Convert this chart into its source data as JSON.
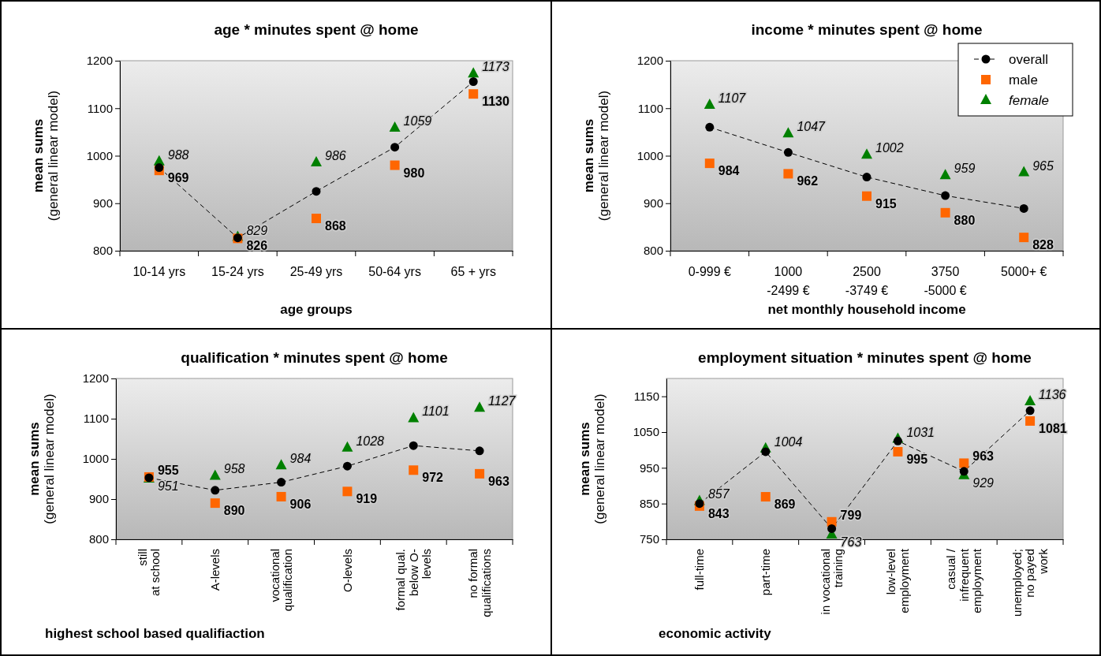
{
  "chart_data": [
    {
      "type": "line",
      "title": "age * minutes spent @ home",
      "xlabel": "age groups",
      "ylabel": "mean sums",
      "subtitle": "(general linear model)",
      "categories": [
        "10-14 yrs",
        "15-24 yrs",
        "25-49 yrs",
        "50-64 yrs",
        "65 + yrs"
      ],
      "ylim": [
        800,
        1200
      ],
      "yticks": [
        800,
        900,
        1000,
        1100,
        1200
      ],
      "grid": false,
      "legend": false,
      "series": [
        {
          "type": "line",
          "marker": "circle",
          "line_style": "dashed",
          "color": "#000000",
          "values": [
            975,
            827,
            925,
            1018,
            1156
          ]
        },
        {
          "type": "scatter",
          "marker": "square",
          "color": "#ff6600",
          "values": [
            969,
            826,
            868,
            980,
            1130
          ],
          "value_labels": [
            "969",
            "826",
            "868",
            "980",
            "1130"
          ]
        },
        {
          "type": "scatter",
          "marker": "triangle",
          "color": "#008000",
          "values": [
            988,
            829,
            986,
            1059,
            1173
          ],
          "value_labels": [
            "988",
            "829",
            "986",
            "1059",
            "1173"
          ]
        }
      ]
    },
    {
      "type": "line",
      "title": "income * minutes spent @ home",
      "xlabel": "net monthly household income",
      "ylabel": "mean sums",
      "subtitle": "(general linear model)",
      "categories": [
        "0-999 €",
        "1000\n-2499 €",
        "2500\n-3749 €",
        "3750\n-5000 €",
        "5000+ €"
      ],
      "ylim": [
        800,
        1200
      ],
      "yticks": [
        800,
        900,
        1000,
        1100,
        1200
      ],
      "grid": false,
      "legend": "top right",
      "series": [
        {
          "name": "overall",
          "type": "line",
          "marker": "circle",
          "line_style": "dashed",
          "color": "#000000",
          "values": [
            1060,
            1007,
            955,
            916,
            889
          ]
        },
        {
          "name": "male",
          "type": "scatter",
          "marker": "square",
          "color": "#ff6600",
          "values": [
            984,
            962,
            915,
            880,
            828
          ],
          "value_labels": [
            "984",
            "962",
            "915",
            "880",
            "828"
          ]
        },
        {
          "name": "female",
          "type": "scatter",
          "marker": "triangle",
          "color": "#008000",
          "values": [
            1107,
            1047,
            1002,
            959,
            965
          ],
          "value_labels": [
            "1107",
            "1047",
            "1002",
            "959",
            "965"
          ]
        }
      ]
    },
    {
      "type": "line",
      "title": "qualification * minutes spent @ home",
      "xlabel": "highest school based qualifiaction",
      "ylabel": "mean sums",
      "subtitle": "(general linear model)",
      "categories": [
        "still\nat school",
        "A-levels",
        "vocational\nqualification",
        "O-levels",
        "formal qual.\nbelow O-\nlevels",
        "no formal\nqualifications"
      ],
      "ylim": [
        800,
        1200
      ],
      "yticks": [
        800,
        900,
        1000,
        1100,
        1200
      ],
      "grid": false,
      "legend": false,
      "series": [
        {
          "type": "line",
          "marker": "circle",
          "line_style": "dashed",
          "color": "#000000",
          "values": [
            953,
            922,
            942,
            982,
            1033,
            1020
          ]
        },
        {
          "type": "scatter",
          "marker": "square",
          "color": "#ff6600",
          "values": [
            955,
            890,
            906,
            919,
            972,
            963
          ],
          "value_labels": [
            "955",
            "890",
            "906",
            "919",
            "972",
            "963"
          ]
        },
        {
          "type": "scatter",
          "marker": "triangle",
          "color": "#008000",
          "values": [
            951,
            958,
            984,
            1028,
            1101,
            1127
          ],
          "value_labels": [
            "951",
            "958",
            "984",
            "1028",
            "1101",
            "1127"
          ]
        }
      ]
    },
    {
      "type": "line",
      "title": "employment situation * minutes spent @ home",
      "xlabel": "economic activity",
      "ylabel": "mean sums",
      "subtitle": "(general linear model)",
      "categories": [
        "full-time",
        "part-time",
        "in vocational\ntraining",
        "low-level\nemployment",
        "casual /\ninfrequent\nemployment",
        "unemployed;\nno payed\nwork"
      ],
      "ylim": [
        750,
        1200
      ],
      "yticks": [
        750,
        850,
        950,
        1050,
        1150
      ],
      "grid": false,
      "legend": false,
      "series": [
        {
          "type": "line",
          "marker": "circle",
          "line_style": "dashed",
          "color": "#000000",
          "values": [
            850,
            995,
            780,
            1025,
            940,
            1110
          ]
        },
        {
          "type": "scatter",
          "marker": "square",
          "color": "#ff6600",
          "values": [
            843,
            869,
            799,
            995,
            963,
            1081
          ],
          "value_labels": [
            "843",
            "869",
            "799",
            "995",
            "963",
            "1081"
          ]
        },
        {
          "type": "scatter",
          "marker": "triangle",
          "color": "#008000",
          "values": [
            857,
            1004,
            763,
            1031,
            929,
            1136
          ],
          "value_labels": [
            "857",
            "1004",
            "763",
            "1031",
            "929",
            "1136"
          ]
        }
      ]
    }
  ]
}
